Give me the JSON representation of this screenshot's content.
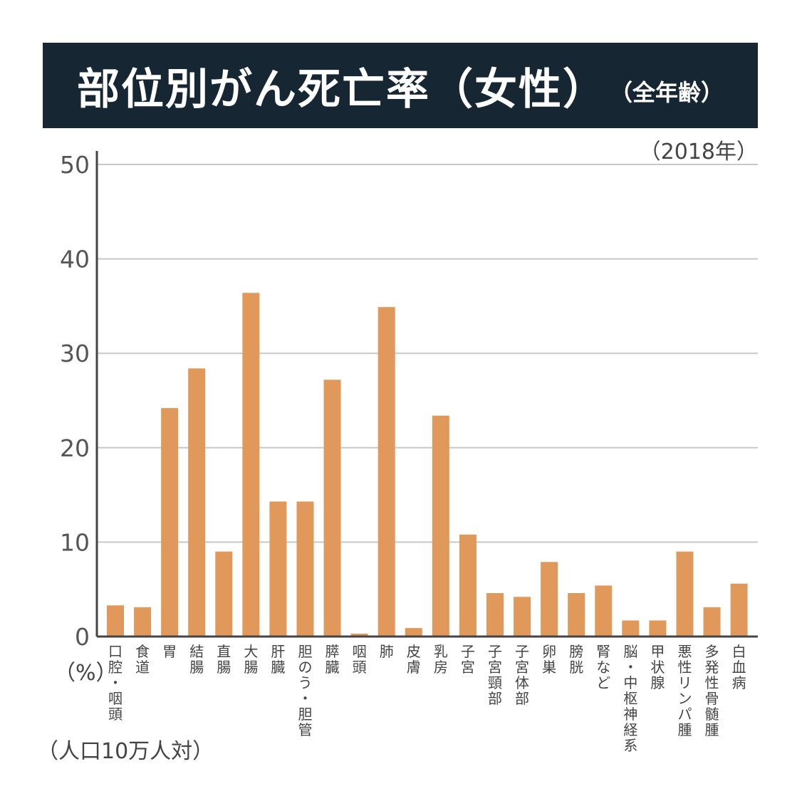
{
  "header": {
    "title": "部位別がん死亡率（女性）",
    "subtitle": "（全年齢）",
    "year": "（2018年）"
  },
  "units": {
    "percent": "（%）",
    "population": "（人口10万人対）"
  },
  "colors": {
    "banner": "#172633",
    "bar": "#E0995A",
    "grid": "#c8c8c8",
    "axis": "#444444"
  },
  "chart_data": {
    "type": "bar",
    "categories": [
      "口腔・咽頭",
      "食道",
      "胃",
      "結腸",
      "直腸",
      "大腸",
      "肝臓",
      "胆のう・胆管",
      "膵臓",
      "咽頭",
      "肺",
      "皮膚",
      "乳房",
      "子宮",
      "子宮頸部",
      "子宮体部",
      "卵巣",
      "膀胱",
      "腎など",
      "脳・中枢神経系",
      "甲状腺",
      "悪性リンパ腫",
      "多発性骨髄腫",
      "白血病"
    ],
    "values": [
      3.3,
      3.1,
      24.2,
      28.4,
      9.0,
      36.4,
      14.3,
      14.3,
      27.2,
      0.3,
      34.9,
      0.9,
      23.4,
      10.8,
      4.6,
      4.2,
      7.9,
      4.6,
      5.4,
      1.7,
      1.7,
      9.0,
      3.1,
      5.6
    ],
    "yticks": [
      0,
      10,
      20,
      30,
      40,
      50
    ],
    "ylim": [
      0,
      50
    ],
    "grid": true
  }
}
